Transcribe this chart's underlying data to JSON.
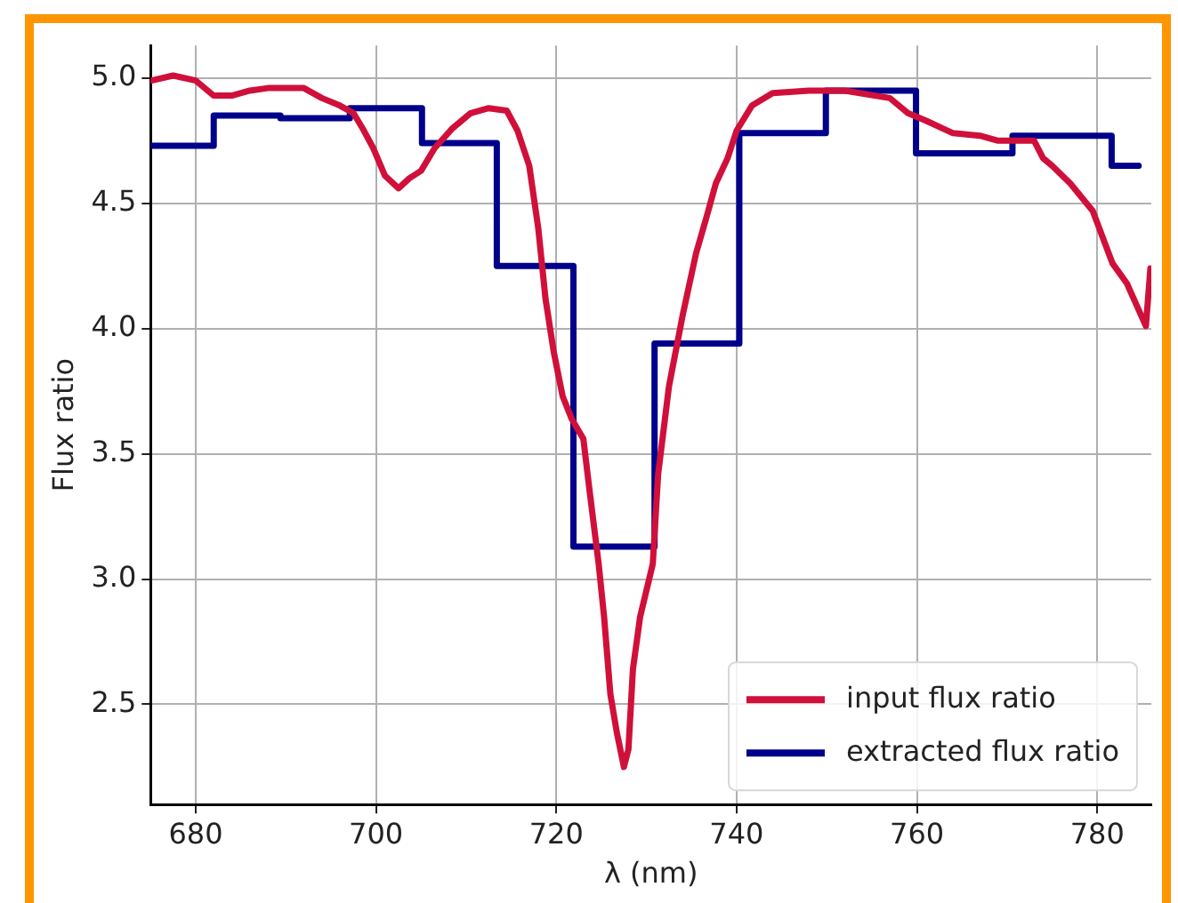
{
  "chart_data": {
    "type": "line",
    "xlabel": "λ (nm)",
    "ylabel": "Flux ratio",
    "xlim": [
      675,
      786
    ],
    "xticks": [
      680,
      700,
      720,
      740,
      760,
      780
    ],
    "ylim": [
      2.1,
      5.13
    ],
    "yticks": [
      2.5,
      {
        "value": 3,
        "label": "3.0"
      },
      3.5,
      {
        "value": 4,
        "label": "4.0"
      },
      4.5,
      {
        "value": 5,
        "label": "5.0"
      }
    ],
    "grid": true,
    "legend": "bottom right",
    "marker": "none",
    "line_style": "solid",
    "series": [
      {
        "name": "input flux ratio",
        "type": "line",
        "color": "#d0103a",
        "x": [
          675.1,
          677.5,
          680,
          682,
          684,
          686,
          688,
          690,
          692,
          694,
          696,
          697.5,
          698.5,
          699.7,
          701,
          702.5,
          703.7,
          705,
          706.5,
          708.5,
          710.5,
          712.5,
          714.5,
          715.7,
          717,
          718,
          718.8,
          719.7,
          720.7,
          721.7,
          723,
          723.7,
          724.7,
          725.3,
          726,
          726.7,
          727.5,
          728,
          728.5,
          729.3,
          730.7,
          731.3,
          732.5,
          734,
          735.5,
          736.7,
          737.7,
          739,
          740,
          741.7,
          744,
          748,
          752,
          757,
          759,
          761,
          764,
          767,
          769,
          773,
          774,
          775,
          777,
          779.5,
          781.7,
          783.3,
          785.4,
          785.9
        ],
        "values": [
          4.99,
          5.01,
          4.99,
          4.93,
          4.93,
          4.95,
          4.96,
          4.96,
          4.96,
          4.92,
          4.89,
          4.86,
          4.8,
          4.72,
          4.61,
          4.56,
          4.6,
          4.63,
          4.72,
          4.8,
          4.86,
          4.88,
          4.87,
          4.79,
          4.65,
          4.4,
          4.12,
          3.91,
          3.73,
          3.64,
          3.56,
          3.35,
          3.06,
          2.85,
          2.54,
          2.39,
          2.25,
          2.32,
          2.64,
          2.85,
          3.06,
          3.42,
          3.77,
          4.05,
          4.3,
          4.45,
          4.58,
          4.68,
          4.79,
          4.89,
          4.94,
          4.95,
          4.95,
          4.92,
          4.86,
          4.83,
          4.78,
          4.77,
          4.75,
          4.75,
          4.68,
          4.65,
          4.58,
          4.47,
          4.26,
          4.18,
          4.01,
          4.24
        ]
      },
      {
        "name": "extracted flux ratio",
        "type": "step",
        "color": "#00008b",
        "x": [
          675,
          682,
          689.4,
          697.1,
          705.1,
          713.4,
          721.9,
          730.9,
          740.3,
          749.9,
          759.9,
          770.6,
          781.6,
          784.6
        ],
        "values": [
          4.73,
          4.85,
          4.84,
          4.88,
          4.74,
          4.25,
          3.13,
          3.94,
          4.78,
          4.95,
          4.7,
          4.77,
          4.65,
          4.65
        ]
      }
    ]
  }
}
